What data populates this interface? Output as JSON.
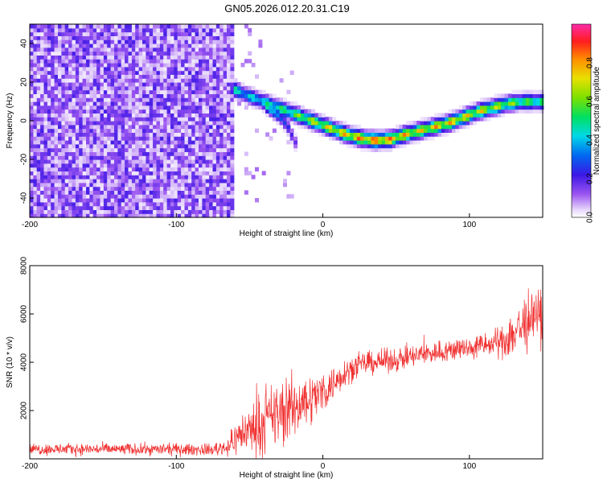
{
  "figure": {
    "title": "GN05.2026.012.20.31.C19"
  },
  "colors": {
    "snr_line": "#f03030",
    "background": "#ffffff",
    "axis": "#000000"
  },
  "chart_data": [
    {
      "type": "heatmap",
      "title": "",
      "xlabel": "Height of straight line (km)",
      "ylabel": "Frequency (Hz)",
      "xlim": [
        -200,
        150
      ],
      "ylim": [
        -50,
        50
      ],
      "x_ticks": [
        -200,
        -100,
        0,
        100
      ],
      "x_tick_labels": [
        "-200",
        "-100",
        "0",
        "100"
      ],
      "y_ticks": [
        -40,
        -20,
        0,
        20,
        40
      ],
      "y_tick_labels": [
        "-40",
        "-20",
        "0",
        "20",
        "40"
      ],
      "colorbar": {
        "label": "Normalized spectral amplitude",
        "range": [
          0,
          1
        ],
        "ticks": [
          0.0,
          0.2,
          0.4,
          0.6,
          0.8
        ],
        "tick_labels": [
          "0.0",
          "0.2",
          "0.4",
          "0.6",
          "0.8"
        ],
        "colormap": "rainbow-white-to-magenta"
      },
      "noise_region": {
        "x_range": [
          -200,
          -63
        ],
        "freq_range": [
          -50,
          50
        ],
        "amplitude": "low (0.0-0.15)"
      },
      "signal_trace": {
        "x": [
          -63,
          -55,
          -45,
          -35,
          -25,
          -15,
          -5,
          5,
          15,
          25,
          35,
          45,
          55,
          65,
          75,
          85,
          95,
          105,
          115,
          125,
          135,
          150
        ],
        "frequency": [
          17,
          14,
          11,
          8,
          5,
          2,
          -1,
          -4,
          -7,
          -9,
          -10,
          -9.5,
          -7,
          -5,
          -3,
          -1,
          2,
          5,
          7,
          9,
          10,
          10
        ],
        "amplitude": [
          0.55,
          0.45,
          0.5,
          0.55,
          0.6,
          0.7,
          0.75,
          0.8,
          0.85,
          0.9,
          0.95,
          0.9,
          0.85,
          0.8,
          0.85,
          0.85,
          0.8,
          0.8,
          0.75,
          0.7,
          0.65,
          0.6
        ]
      },
      "secondary_branch": {
        "x": [
          -40,
          -35,
          -30,
          -25,
          -22,
          -18
        ],
        "frequency": [
          8,
          5,
          2,
          -3,
          -8,
          -14
        ],
        "amplitude": [
          0.5,
          0.4,
          0.3,
          0.25,
          0.2,
          0.15
        ]
      },
      "grid": false
    },
    {
      "type": "line",
      "title": "",
      "xlabel": "Height of straight line (km)",
      "ylabel": "SNR (10 * v/v)",
      "xlim": [
        -200,
        150
      ],
      "ylim": [
        0,
        8000
      ],
      "x_ticks": [
        -200,
        -100,
        0,
        100
      ],
      "x_tick_labels": [
        "-200",
        "-100",
        "0",
        "100"
      ],
      "y_ticks": [
        2000,
        4000,
        6000,
        8000
      ],
      "y_tick_labels": [
        "2000",
        "4000",
        "6000",
        "8000"
      ],
      "grid": false,
      "series": [
        {
          "x": [
            -200,
            -150,
            -100,
            -75,
            -65,
            -55,
            -45,
            -35,
            -25,
            -15,
            -5,
            5,
            15,
            25,
            35,
            50,
            75,
            100,
            120,
            130,
            140,
            150
          ],
          "mean": [
            400,
            400,
            390,
            380,
            500,
            1100,
            1300,
            1700,
            2000,
            2300,
            2600,
            3000,
            3600,
            3900,
            4000,
            4100,
            4400,
            4600,
            4800,
            5200,
            5700,
            6000
          ],
          "spread": [
            250,
            250,
            250,
            250,
            400,
            900,
            1200,
            1400,
            1500,
            1200,
            1000,
            800,
            600,
            500,
            500,
            500,
            500,
            500,
            600,
            1200,
            1300,
            1200
          ]
        }
      ]
    }
  ]
}
